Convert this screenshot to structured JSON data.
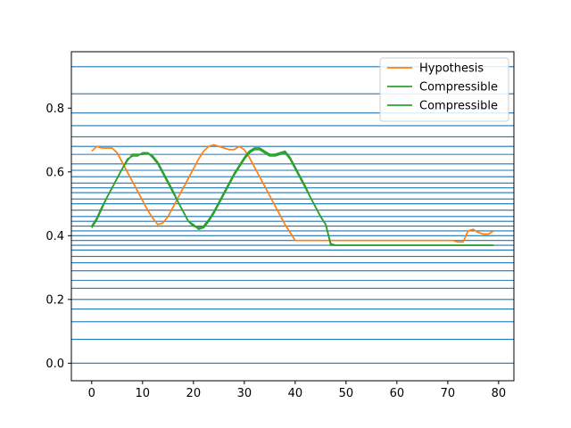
{
  "chart_data": {
    "type": "line",
    "title": "",
    "xlabel": "",
    "ylabel": "",
    "xlim": [
      -4,
      83
    ],
    "ylim": [
      -0.055,
      0.977
    ],
    "xticks": [
      0,
      10,
      20,
      30,
      40,
      50,
      60,
      70,
      80
    ],
    "xtick_labels": [
      "0",
      "10",
      "20",
      "30",
      "40",
      "50",
      "60",
      "70",
      "80"
    ],
    "yticks": [
      0.0,
      0.2,
      0.4,
      0.6,
      0.8
    ],
    "ytick_labels": [
      "0.0",
      "0.2",
      "0.4",
      "0.6",
      "0.8"
    ],
    "grid": false,
    "legend_position": "top-right",
    "hlines": {
      "color": "#1f77b4",
      "values": [
        0.0,
        0.075,
        0.13,
        0.17,
        0.2,
        0.235,
        0.26,
        0.29,
        0.315,
        0.335,
        0.355,
        0.37,
        0.385,
        0.4,
        0.415,
        0.43,
        0.445,
        0.46,
        0.48,
        0.5,
        0.515,
        0.535,
        0.55,
        0.565,
        0.585,
        0.605,
        0.625,
        0.655,
        0.68,
        0.71,
        0.745,
        0.785,
        0.845,
        0.93
      ]
    },
    "series": [
      {
        "name": "Hypothesis",
        "color": "#ff7f0e",
        "x": [
          0,
          1,
          2,
          3,
          4,
          5,
          6,
          7,
          8,
          9,
          10,
          11,
          12,
          13,
          14,
          15,
          16,
          17,
          18,
          19,
          20,
          21,
          22,
          23,
          24,
          25,
          26,
          27,
          28,
          29,
          30,
          31,
          32,
          33,
          34,
          35,
          36,
          37,
          38,
          39,
          40,
          41,
          42,
          43,
          44,
          45,
          46,
          47,
          48,
          49,
          50,
          51,
          52,
          53,
          54,
          55,
          56,
          57,
          58,
          59,
          60,
          61,
          62,
          63,
          64,
          65,
          66,
          67,
          68,
          69,
          70,
          71,
          72,
          73,
          74,
          75,
          76,
          77,
          78,
          79
        ],
        "values": [
          0.665,
          0.68,
          0.675,
          0.675,
          0.675,
          0.66,
          0.63,
          0.6,
          0.57,
          0.54,
          0.51,
          0.48,
          0.455,
          0.435,
          0.44,
          0.46,
          0.49,
          0.52,
          0.55,
          0.58,
          0.61,
          0.64,
          0.665,
          0.68,
          0.685,
          0.68,
          0.675,
          0.67,
          0.67,
          0.68,
          0.67,
          0.645,
          0.615,
          0.585,
          0.555,
          0.525,
          0.495,
          0.465,
          0.435,
          0.41,
          0.385,
          0.385,
          0.385,
          0.385,
          0.385,
          0.385,
          0.385,
          0.385,
          0.385,
          0.385,
          0.385,
          0.385,
          0.385,
          0.385,
          0.385,
          0.385,
          0.385,
          0.385,
          0.385,
          0.385,
          0.385,
          0.385,
          0.385,
          0.385,
          0.385,
          0.385,
          0.385,
          0.385,
          0.385,
          0.385,
          0.385,
          0.385,
          0.38,
          0.38,
          0.415,
          0.42,
          0.41,
          0.405,
          0.405,
          0.415
        ]
      },
      {
        "name": "Compressible",
        "color": "#2ca02c",
        "x": [
          0,
          1,
          2,
          3,
          4,
          5,
          6,
          7,
          8,
          9,
          10,
          11,
          12,
          13,
          14,
          15,
          16,
          17,
          18,
          19,
          20,
          21,
          22,
          23,
          24,
          25,
          26,
          27,
          28,
          29,
          30,
          31,
          32,
          33,
          34,
          35,
          36,
          37,
          38,
          39,
          40,
          41,
          42,
          43,
          44,
          45,
          46,
          47,
          48,
          49,
          50,
          51,
          52,
          53,
          54,
          55,
          56,
          57,
          58,
          59,
          60,
          61,
          62,
          63,
          64,
          65,
          66,
          67,
          68,
          69,
          70,
          71,
          72,
          73,
          74,
          75,
          76,
          77,
          78,
          79
        ],
        "values": [
          0.43,
          0.455,
          0.49,
          0.52,
          0.55,
          0.58,
          0.61,
          0.64,
          0.65,
          0.65,
          0.66,
          0.66,
          0.645,
          0.625,
          0.595,
          0.565,
          0.535,
          0.505,
          0.475,
          0.445,
          0.43,
          0.425,
          0.43,
          0.45,
          0.475,
          0.505,
          0.535,
          0.565,
          0.595,
          0.62,
          0.645,
          0.665,
          0.675,
          0.675,
          0.665,
          0.655,
          0.655,
          0.66,
          0.665,
          0.645,
          0.615,
          0.585,
          0.555,
          0.52,
          0.49,
          0.46,
          0.435,
          0.37,
          0.37,
          0.37,
          0.37,
          0.37,
          0.37,
          0.37,
          0.37,
          0.37,
          0.37,
          0.37,
          0.37,
          0.37,
          0.37,
          0.37,
          0.37,
          0.37,
          0.37,
          0.37,
          0.37,
          0.37,
          0.37,
          0.37,
          0.37,
          0.37,
          0.37,
          0.37,
          0.37,
          0.37,
          0.37,
          0.37,
          0.37,
          0.37
        ]
      },
      {
        "name": "Compressible",
        "color": "#2ca02c",
        "x": [
          0,
          1,
          2,
          3,
          4,
          5,
          6,
          7,
          8,
          9,
          10,
          11,
          12,
          13,
          14,
          15,
          16,
          17,
          18,
          19,
          20,
          21,
          22,
          23,
          24,
          25,
          26,
          27,
          28,
          29,
          30,
          31,
          32,
          33,
          34,
          35,
          36,
          37,
          38,
          39,
          40,
          41,
          42,
          43,
          44,
          45,
          46,
          47,
          48,
          49,
          50,
          51,
          52,
          53,
          54,
          55,
          56,
          57,
          58,
          59,
          60,
          61,
          62,
          63,
          64,
          65,
          66,
          67,
          68,
          69,
          70,
          71,
          72,
          73,
          74,
          75,
          76,
          77,
          78,
          79
        ],
        "values": [
          0.425,
          0.45,
          0.485,
          0.52,
          0.55,
          0.58,
          0.61,
          0.635,
          0.655,
          0.655,
          0.655,
          0.66,
          0.65,
          0.63,
          0.6,
          0.57,
          0.54,
          0.505,
          0.475,
          0.445,
          0.435,
          0.42,
          0.425,
          0.445,
          0.47,
          0.5,
          0.53,
          0.56,
          0.59,
          0.615,
          0.64,
          0.66,
          0.67,
          0.67,
          0.66,
          0.65,
          0.65,
          0.655,
          0.66,
          0.64,
          0.61,
          0.58,
          0.55,
          0.52,
          0.49,
          0.46,
          0.435,
          0.375,
          0.37,
          0.37,
          0.37,
          0.37,
          0.37,
          0.37,
          0.37,
          0.37,
          0.37,
          0.37,
          0.37,
          0.37,
          0.37,
          0.37,
          0.37,
          0.37,
          0.37,
          0.37,
          0.37,
          0.37,
          0.37,
          0.37,
          0.37,
          0.37,
          0.37,
          0.37,
          0.37,
          0.37,
          0.37,
          0.37,
          0.37,
          0.37
        ]
      }
    ]
  }
}
